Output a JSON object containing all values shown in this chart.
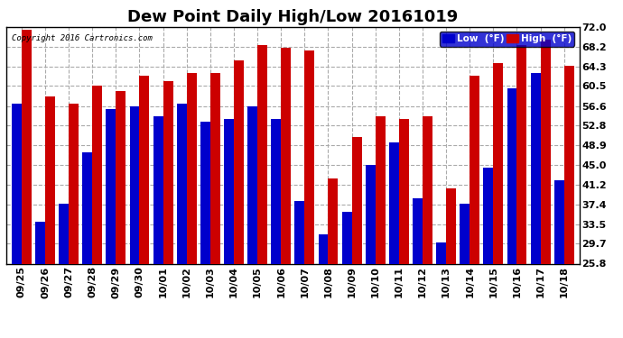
{
  "title": "Dew Point Daily High/Low 20161019",
  "copyright": "Copyright 2016 Cartronics.com",
  "dates": [
    "09/25",
    "09/26",
    "09/27",
    "09/28",
    "09/29",
    "09/30",
    "10/01",
    "10/02",
    "10/03",
    "10/04",
    "10/05",
    "10/06",
    "10/07",
    "10/08",
    "10/09",
    "10/10",
    "10/11",
    "10/12",
    "10/13",
    "10/14",
    "10/15",
    "10/16",
    "10/17",
    "10/18"
  ],
  "low_values": [
    57.0,
    34.0,
    37.5,
    47.5,
    56.0,
    56.5,
    54.5,
    57.0,
    53.5,
    54.0,
    56.5,
    54.0,
    38.0,
    31.5,
    36.0,
    45.0,
    49.5,
    38.5,
    30.0,
    37.5,
    44.5,
    60.0,
    63.0,
    42.0
  ],
  "high_values": [
    71.5,
    58.5,
    57.0,
    60.5,
    59.5,
    62.5,
    61.5,
    63.0,
    63.0,
    65.5,
    68.5,
    68.0,
    67.5,
    42.5,
    50.5,
    54.5,
    54.0,
    54.5,
    40.5,
    62.5,
    65.0,
    68.5,
    69.5,
    64.5
  ],
  "low_color": "#0000cc",
  "high_color": "#cc0000",
  "bg_color": "#ffffff",
  "plot_bg_color": "#ffffff",
  "grid_color": "#aaaaaa",
  "ylim": [
    25.8,
    72.0
  ],
  "yticks": [
    25.8,
    29.7,
    33.5,
    37.4,
    41.2,
    45.0,
    48.9,
    52.8,
    56.6,
    60.5,
    64.3,
    68.2,
    72.0
  ],
  "title_fontsize": 13,
  "tick_fontsize": 8,
  "bar_width": 0.42
}
